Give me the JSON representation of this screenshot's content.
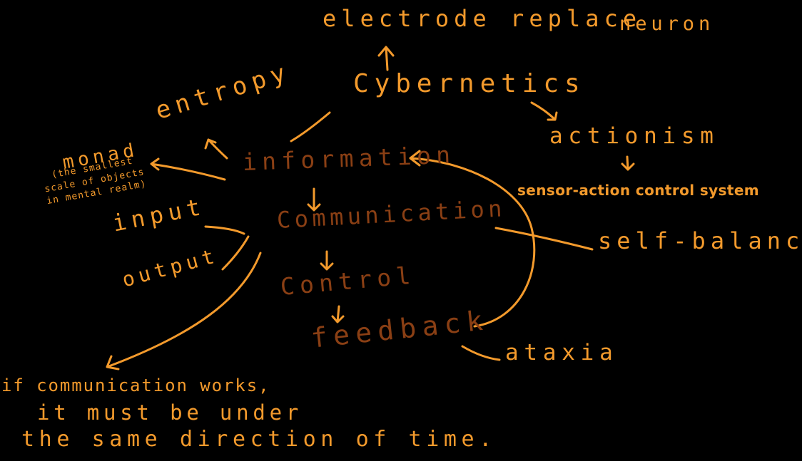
{
  "diagram": {
    "background_color": "#000000",
    "ink_colors": {
      "primary": "#f39a2c",
      "core_chain": "#8a3f14"
    },
    "nodes": {
      "electrode": "electrode replace",
      "neuron": "neuron",
      "cybernetics": "Cybernetics",
      "actionism": "actionism",
      "sensor_action": "sensor-action control system",
      "self_balance": "self-balance",
      "ataxia": "ataxia",
      "information": "information",
      "communication": "Communication",
      "control": "Control",
      "feedback": "feedback",
      "entropy": "entropy",
      "monad": "monad",
      "monad_note": "(the smallest\nscale of objects\nin mental realm)",
      "input": "input",
      "output": "output"
    },
    "note": {
      "line_1": "if communication works,",
      "line_2": "it must be under",
      "line_3": "the same direction of time."
    }
  }
}
